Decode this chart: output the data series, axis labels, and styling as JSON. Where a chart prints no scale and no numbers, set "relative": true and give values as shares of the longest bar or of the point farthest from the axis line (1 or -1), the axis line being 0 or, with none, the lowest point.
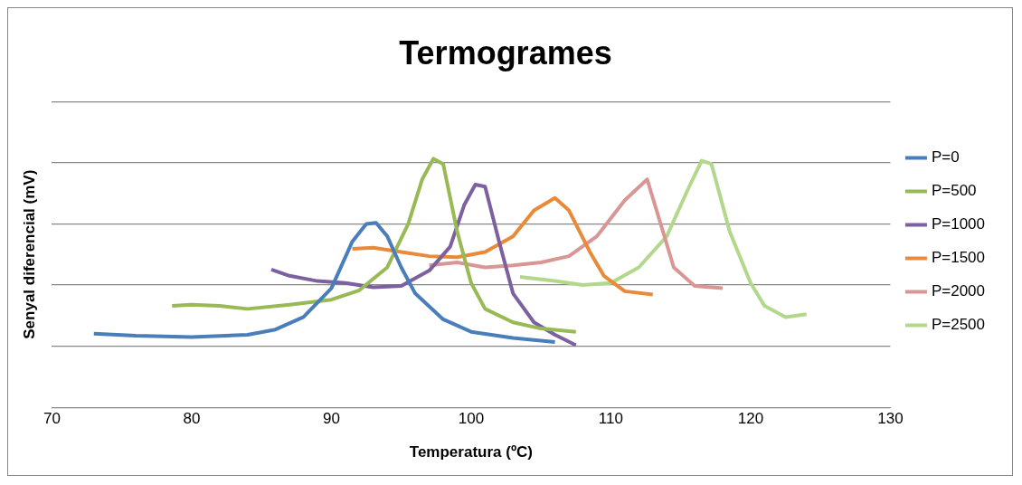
{
  "chart_data": {
    "type": "line",
    "title": "Termogrames",
    "xlabel": "Temperatura (ºC)",
    "ylabel": "Senyal diferencial (mV)",
    "relative": true,
    "xlim": [
      70,
      130
    ],
    "xticks": [
      70,
      80,
      90,
      100,
      110,
      120,
      130
    ],
    "grid": "y",
    "legend": "right",
    "marker": "none",
    "line_style": "solid",
    "series": [
      {
        "name": "P=0",
        "color": "#4a7ebb",
        "x": [
          73,
          76,
          80,
          84,
          86,
          88,
          90,
          91.5,
          92.5,
          93.2,
          94,
          95,
          96,
          98,
          100,
          103,
          106
        ],
        "values": [
          0.296,
          0.288,
          0.283,
          0.292,
          0.313,
          0.363,
          0.479,
          0.667,
          0.738,
          0.742,
          0.688,
          0.563,
          0.458,
          0.354,
          0.304,
          0.279,
          0.263
        ]
      },
      {
        "name": "P=500",
        "color": "#98b954",
        "x": [
          78.6,
          80,
          82,
          84,
          87,
          90,
          92,
          94,
          95.5,
          96.5,
          97.3,
          98,
          99,
          100,
          101,
          103,
          105,
          107.5
        ],
        "values": [
          0.408,
          0.413,
          0.408,
          0.396,
          0.413,
          0.433,
          0.471,
          0.563,
          0.738,
          0.917,
          1.0,
          0.979,
          0.708,
          0.5,
          0.396,
          0.342,
          0.317,
          0.304
        ]
      },
      {
        "name": "P=1000",
        "color": "#7d60a0",
        "x": [
          85.7,
          87,
          89,
          91,
          93,
          95,
          97,
          98.5,
          99.5,
          100.3,
          101,
          102,
          103,
          104.5,
          106,
          107.5
        ],
        "values": [
          0.554,
          0.529,
          0.508,
          0.5,
          0.483,
          0.488,
          0.55,
          0.646,
          0.813,
          0.896,
          0.888,
          0.667,
          0.458,
          0.342,
          0.292,
          0.25
        ]
      },
      {
        "name": "P=1500",
        "color": "#e98a3a",
        "x": [
          91.5,
          93,
          95,
          97,
          99,
          101,
          103,
          104.5,
          106,
          107,
          108.5,
          109.5,
          111,
          113
        ],
        "values": [
          0.638,
          0.642,
          0.625,
          0.608,
          0.604,
          0.625,
          0.688,
          0.792,
          0.842,
          0.792,
          0.625,
          0.529,
          0.467,
          0.454
        ]
      },
      {
        "name": "P=2000",
        "color": "#d99694",
        "x": [
          97,
          99,
          101,
          103,
          105,
          107,
          109,
          111,
          112.6,
          113.5,
          114.5,
          116,
          118
        ],
        "values": [
          0.571,
          0.583,
          0.563,
          0.571,
          0.583,
          0.608,
          0.688,
          0.833,
          0.917,
          0.75,
          0.563,
          0.488,
          0.479
        ]
      },
      {
        "name": "P=2500",
        "color": "#b3d88c",
        "x": [
          103.5,
          106,
          108,
          110,
          112,
          114,
          115.5,
          116.5,
          117.2,
          118.5,
          120,
          121,
          122.5,
          124
        ],
        "values": [
          0.525,
          0.508,
          0.492,
          0.5,
          0.563,
          0.688,
          0.875,
          0.992,
          0.979,
          0.708,
          0.5,
          0.408,
          0.363,
          0.375
        ]
      }
    ]
  }
}
